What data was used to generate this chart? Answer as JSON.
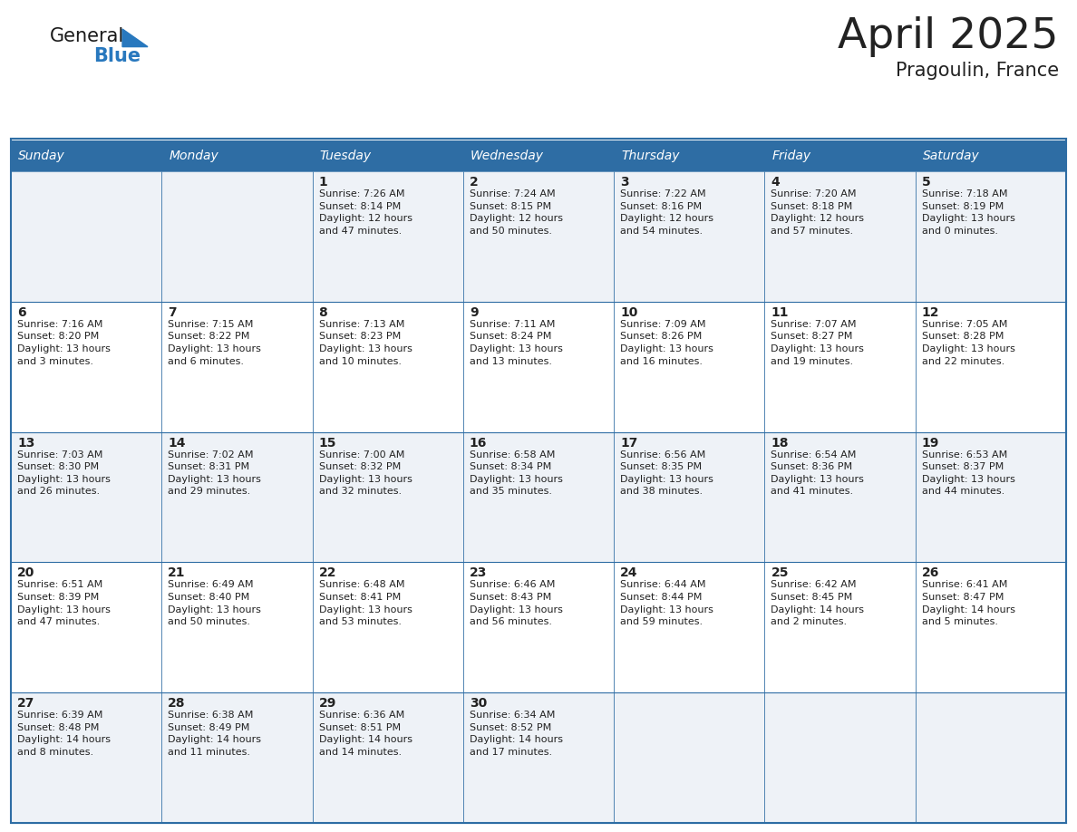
{
  "title": "April 2025",
  "subtitle": "Pragoulin, France",
  "header_color": "#2E6DA4",
  "header_text_color": "#FFFFFF",
  "cell_bg_even": "#EEF2F7",
  "cell_bg_odd": "#FFFFFF",
  "border_color": "#2E6DA4",
  "text_color": "#222222",
  "days_of_week": [
    "Sunday",
    "Monday",
    "Tuesday",
    "Wednesday",
    "Thursday",
    "Friday",
    "Saturday"
  ],
  "logo_general_color": "#1a1a1a",
  "logo_blue_color": "#2878BE",
  "triangle_color": "#2878BE",
  "weeks": [
    [
      {
        "day": "",
        "info": ""
      },
      {
        "day": "",
        "info": ""
      },
      {
        "day": "1",
        "info": "Sunrise: 7:26 AM\nSunset: 8:14 PM\nDaylight: 12 hours\nand 47 minutes."
      },
      {
        "day": "2",
        "info": "Sunrise: 7:24 AM\nSunset: 8:15 PM\nDaylight: 12 hours\nand 50 minutes."
      },
      {
        "day": "3",
        "info": "Sunrise: 7:22 AM\nSunset: 8:16 PM\nDaylight: 12 hours\nand 54 minutes."
      },
      {
        "day": "4",
        "info": "Sunrise: 7:20 AM\nSunset: 8:18 PM\nDaylight: 12 hours\nand 57 minutes."
      },
      {
        "day": "5",
        "info": "Sunrise: 7:18 AM\nSunset: 8:19 PM\nDaylight: 13 hours\nand 0 minutes."
      }
    ],
    [
      {
        "day": "6",
        "info": "Sunrise: 7:16 AM\nSunset: 8:20 PM\nDaylight: 13 hours\nand 3 minutes."
      },
      {
        "day": "7",
        "info": "Sunrise: 7:15 AM\nSunset: 8:22 PM\nDaylight: 13 hours\nand 6 minutes."
      },
      {
        "day": "8",
        "info": "Sunrise: 7:13 AM\nSunset: 8:23 PM\nDaylight: 13 hours\nand 10 minutes."
      },
      {
        "day": "9",
        "info": "Sunrise: 7:11 AM\nSunset: 8:24 PM\nDaylight: 13 hours\nand 13 minutes."
      },
      {
        "day": "10",
        "info": "Sunrise: 7:09 AM\nSunset: 8:26 PM\nDaylight: 13 hours\nand 16 minutes."
      },
      {
        "day": "11",
        "info": "Sunrise: 7:07 AM\nSunset: 8:27 PM\nDaylight: 13 hours\nand 19 minutes."
      },
      {
        "day": "12",
        "info": "Sunrise: 7:05 AM\nSunset: 8:28 PM\nDaylight: 13 hours\nand 22 minutes."
      }
    ],
    [
      {
        "day": "13",
        "info": "Sunrise: 7:03 AM\nSunset: 8:30 PM\nDaylight: 13 hours\nand 26 minutes."
      },
      {
        "day": "14",
        "info": "Sunrise: 7:02 AM\nSunset: 8:31 PM\nDaylight: 13 hours\nand 29 minutes."
      },
      {
        "day": "15",
        "info": "Sunrise: 7:00 AM\nSunset: 8:32 PM\nDaylight: 13 hours\nand 32 minutes."
      },
      {
        "day": "16",
        "info": "Sunrise: 6:58 AM\nSunset: 8:34 PM\nDaylight: 13 hours\nand 35 minutes."
      },
      {
        "day": "17",
        "info": "Sunrise: 6:56 AM\nSunset: 8:35 PM\nDaylight: 13 hours\nand 38 minutes."
      },
      {
        "day": "18",
        "info": "Sunrise: 6:54 AM\nSunset: 8:36 PM\nDaylight: 13 hours\nand 41 minutes."
      },
      {
        "day": "19",
        "info": "Sunrise: 6:53 AM\nSunset: 8:37 PM\nDaylight: 13 hours\nand 44 minutes."
      }
    ],
    [
      {
        "day": "20",
        "info": "Sunrise: 6:51 AM\nSunset: 8:39 PM\nDaylight: 13 hours\nand 47 minutes."
      },
      {
        "day": "21",
        "info": "Sunrise: 6:49 AM\nSunset: 8:40 PM\nDaylight: 13 hours\nand 50 minutes."
      },
      {
        "day": "22",
        "info": "Sunrise: 6:48 AM\nSunset: 8:41 PM\nDaylight: 13 hours\nand 53 minutes."
      },
      {
        "day": "23",
        "info": "Sunrise: 6:46 AM\nSunset: 8:43 PM\nDaylight: 13 hours\nand 56 minutes."
      },
      {
        "day": "24",
        "info": "Sunrise: 6:44 AM\nSunset: 8:44 PM\nDaylight: 13 hours\nand 59 minutes."
      },
      {
        "day": "25",
        "info": "Sunrise: 6:42 AM\nSunset: 8:45 PM\nDaylight: 14 hours\nand 2 minutes."
      },
      {
        "day": "26",
        "info": "Sunrise: 6:41 AM\nSunset: 8:47 PM\nDaylight: 14 hours\nand 5 minutes."
      }
    ],
    [
      {
        "day": "27",
        "info": "Sunrise: 6:39 AM\nSunset: 8:48 PM\nDaylight: 14 hours\nand 8 minutes."
      },
      {
        "day": "28",
        "info": "Sunrise: 6:38 AM\nSunset: 8:49 PM\nDaylight: 14 hours\nand 11 minutes."
      },
      {
        "day": "29",
        "info": "Sunrise: 6:36 AM\nSunset: 8:51 PM\nDaylight: 14 hours\nand 14 minutes."
      },
      {
        "day": "30",
        "info": "Sunrise: 6:34 AM\nSunset: 8:52 PM\nDaylight: 14 hours\nand 17 minutes."
      },
      {
        "day": "",
        "info": ""
      },
      {
        "day": "",
        "info": ""
      },
      {
        "day": "",
        "info": ""
      }
    ]
  ],
  "fig_width": 11.88,
  "fig_height": 9.18,
  "dpi": 100
}
